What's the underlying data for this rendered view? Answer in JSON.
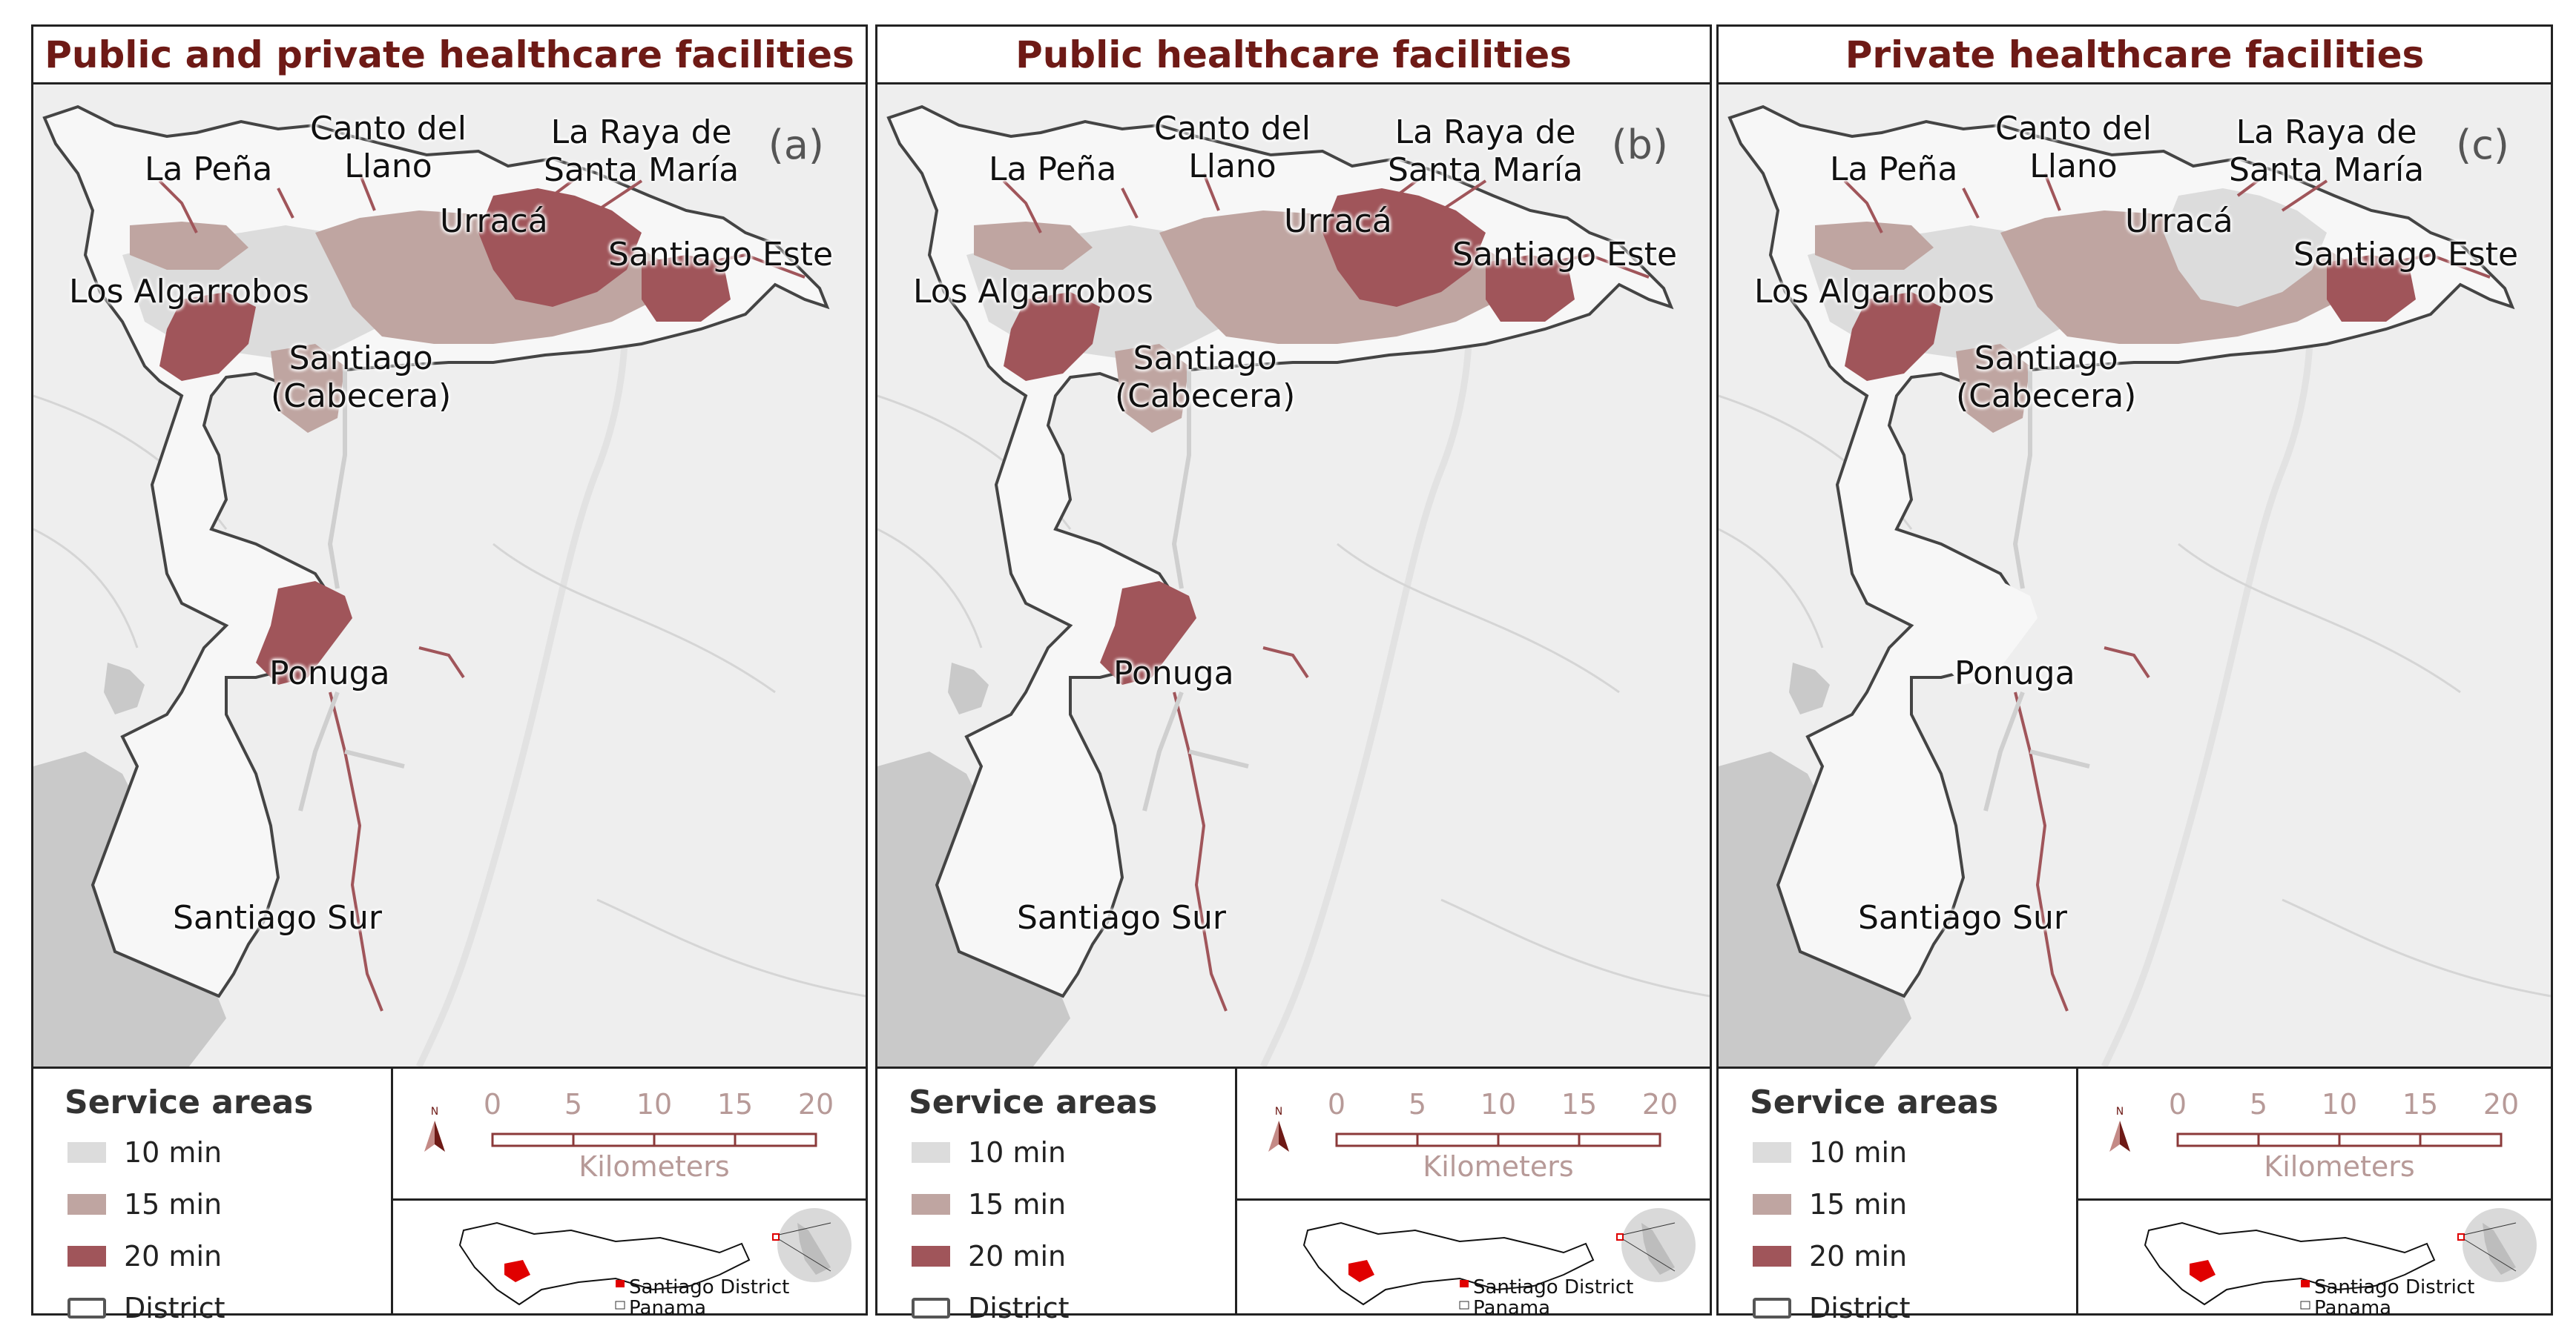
{
  "panels": [
    {
      "title": "Public and private healthcare facilities",
      "panel_id": "(a)",
      "labels": {
        "canto": "Canto del\nLlano",
        "laraya": "La Raya de\nSanta María",
        "lapena": "La Peña",
        "urraca": "Urracá",
        "stgeste": "Santiago Este",
        "algarrobos": "Los Algarrobos",
        "cabecera": "Santiago\n(Cabecera)",
        "ponuga": "Ponuga",
        "stgsur": "Santiago Sur"
      }
    },
    {
      "title": "Public healthcare facilities",
      "panel_id": "(b)",
      "labels": {
        "canto": "Canto del\nLlano",
        "laraya": "La Raya de\nSanta María",
        "lapena": "La Peña",
        "urraca": "Urracá",
        "stgeste": "Santiago Este",
        "algarrobos": "Los Algarrobos",
        "cabecera": "Santiago\n(Cabecera)",
        "ponuga": "Ponuga",
        "stgsur": "Santiago Sur"
      }
    },
    {
      "title": "Private healthcare facilities",
      "panel_id": "(c)",
      "labels": {
        "canto": "Canto del\nLlano",
        "laraya": "La Raya de\nSanta María",
        "lapena": "La Peña",
        "urraca": "Urracá",
        "stgeste": "Santiago Este",
        "algarrobos": "Los Algarrobos",
        "cabecera": "Santiago\n(Cabecera)",
        "ponuga": "Ponuga",
        "stgsur": "Santiago Sur"
      }
    }
  ],
  "legend": {
    "title": "Service areas",
    "items": [
      {
        "label": "10 min",
        "color": "#dcdcdc"
      },
      {
        "label": "15 min",
        "color": "#bfa5a1"
      },
      {
        "label": "20 min",
        "color": "#a0555a"
      },
      {
        "label": "District",
        "color": "#ffffff"
      }
    ]
  },
  "scale": {
    "ticks": [
      "0",
      "5",
      "10",
      "15",
      "20"
    ],
    "unit": "Kilometers",
    "north": "N"
  },
  "inset": {
    "district_label": "Santiago District",
    "country_label": "Panama"
  },
  "colors": {
    "title": "#6e1a16",
    "min10": "#dcdcdc",
    "min15": "#bfa5a1",
    "min20": "#a0555a",
    "background": "#eeeeee",
    "water": "#c9c9c9"
  }
}
